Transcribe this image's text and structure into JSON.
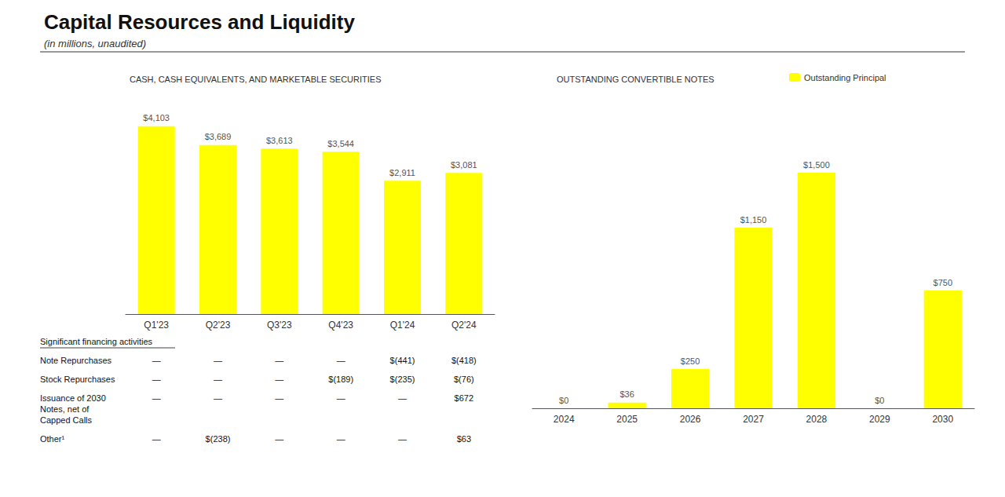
{
  "title": "Capital Resources and Liquidity",
  "subtitle": "(in millions, unaudited)",
  "chart_data": [
    {
      "type": "bar",
      "title": "CASH, CASH EQUIVALENTS, AND MARKETABLE SECURITIES",
      "categories": [
        "Q1'23",
        "Q2'23",
        "Q3'23",
        "Q4'23",
        "Q1'24",
        "Q2'24"
      ],
      "values": [
        4103,
        3689,
        3613,
        3544,
        2911,
        3081
      ],
      "value_labels": [
        "$4,103",
        "$3,689",
        "$3,613",
        "$3,544",
        "$2,911",
        "$3,081"
      ],
      "color": "#FFFF00",
      "ylim": [
        0,
        4800
      ],
      "grid": false,
      "tick_labels": "x",
      "data_labels": true
    },
    {
      "type": "bar",
      "title": "OUTSTANDING CONVERTIBLE NOTES",
      "categories": [
        "2024",
        "2025",
        "2026",
        "2027",
        "2028",
        "2029",
        "2030"
      ],
      "series": [
        {
          "name": "Outstanding Principal",
          "color": "#FFFF00",
          "values": [
            0,
            36,
            250,
            1150,
            1500,
            0,
            750
          ],
          "value_labels": [
            "$0",
            "$36",
            "$250",
            "$1,150",
            "$1,500",
            "$0",
            "$750"
          ]
        }
      ],
      "ylim": [
        0,
        2000
      ],
      "grid": false,
      "tick_labels": "x",
      "data_labels": true,
      "legend": "top"
    }
  ],
  "table": {
    "header": "Significant financing activities",
    "row_labels": [
      "Note Repurchases",
      "Stock Repurchases",
      "Issuance of 2030\nNotes, net of\nCapped Calls",
      "Other¹"
    ],
    "rows": [
      [
        "—",
        "—",
        "—",
        "—",
        "$(441)",
        "$(418)"
      ],
      [
        "—",
        "—",
        "—",
        "$(189)",
        "$(235)",
        "$(76)"
      ],
      [
        "—",
        "—",
        "—",
        "—",
        "—",
        "$672"
      ],
      [
        "—",
        "$(238)",
        "—",
        "—",
        "—",
        "$63"
      ]
    ]
  }
}
